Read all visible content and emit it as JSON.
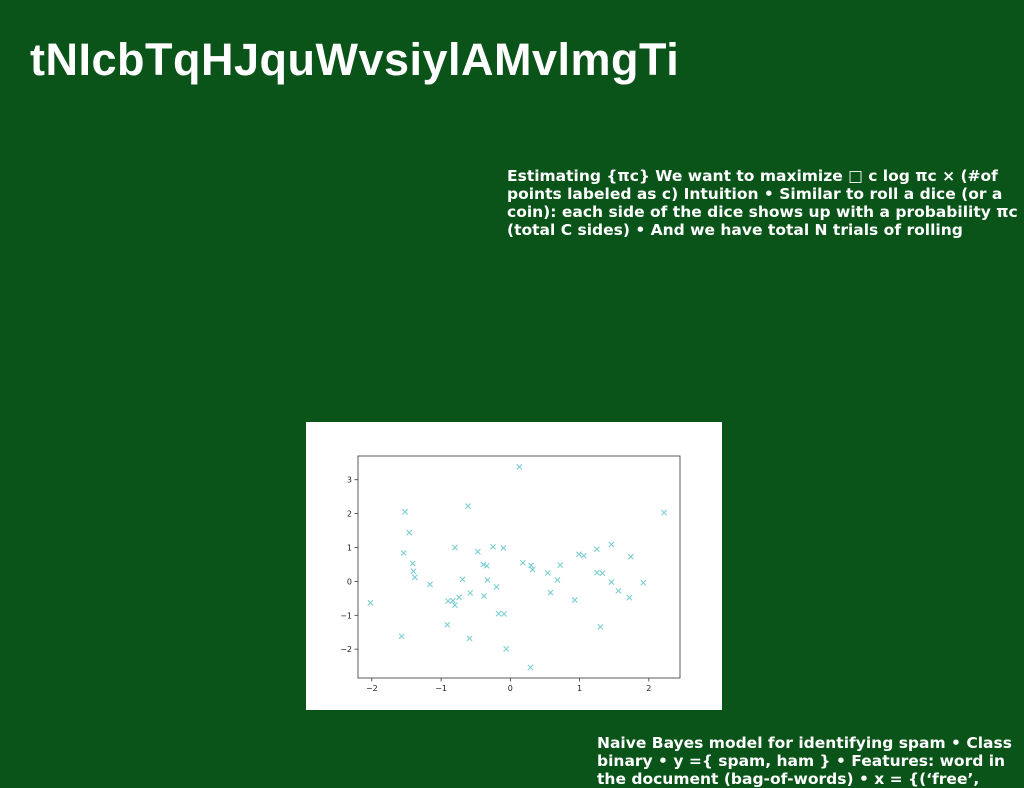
{
  "slide": {
    "title": "tNIcbTqHJquWvsiylAMvlmgTi",
    "text_top": "Estimating {πc} We want to maximize □ c log πc × (#of points labeled as c) Intuition • Similar to roll a dice (or a coin): each side of the dice shows up with a probability πc (total C sides) • And we have total N trials of rolling",
    "text_bottom": "Naive Bayes model for identifying spam • Class binary • y ={ spam, ham } • Features: word in the document (bag-of-words) • x = {(‘free’,",
    "background_color": "#0a5419"
  },
  "chart_data": {
    "type": "scatter",
    "marker": "x",
    "marker_color": "#7ecfd3",
    "grid": false,
    "title": "",
    "xlabel": "",
    "ylabel": "",
    "xlim": [
      -2.2,
      2.45
    ],
    "ylim": [
      -2.85,
      3.7
    ],
    "xticks": [
      -2,
      -1,
      0,
      1,
      2
    ],
    "yticks": [
      -2,
      -1,
      0,
      1,
      2,
      3
    ],
    "xtick_labels": [
      "−2",
      "−1",
      "0",
      "1",
      "2"
    ],
    "ytick_labels": [
      "−2",
      "−1",
      "0",
      "1",
      "2",
      "3"
    ],
    "points": [
      [
        -2.02,
        -0.63
      ],
      [
        -1.57,
        -1.62
      ],
      [
        -1.52,
        2.05
      ],
      [
        -1.54,
        0.84
      ],
      [
        -1.46,
        1.44
      ],
      [
        -1.41,
        0.53
      ],
      [
        -1.4,
        0.3
      ],
      [
        -1.38,
        0.12
      ],
      [
        -1.16,
        -0.09
      ],
      [
        -0.61,
        2.22
      ],
      [
        -0.91,
        -1.28
      ],
      [
        -0.9,
        -0.58
      ],
      [
        -0.83,
        -0.57
      ],
      [
        -0.8,
        -0.7
      ],
      [
        -0.8,
        1.0
      ],
      [
        -0.74,
        -0.47
      ],
      [
        -0.69,
        0.06
      ],
      [
        -0.58,
        -0.34
      ],
      [
        -0.59,
        -1.68
      ],
      [
        -0.47,
        0.88
      ],
      [
        -0.39,
        0.5
      ],
      [
        -0.34,
        0.46
      ],
      [
        -0.33,
        0.04
      ],
      [
        -0.38,
        -0.43
      ],
      [
        -0.25,
        1.02
      ],
      [
        -0.2,
        -0.16
      ],
      [
        -0.17,
        -0.95
      ],
      [
        -0.09,
        -0.96
      ],
      [
        -0.1,
        0.99
      ],
      [
        -0.06,
        -1.99
      ],
      [
        0.13,
        3.38
      ],
      [
        0.18,
        0.55
      ],
      [
        0.3,
        0.47
      ],
      [
        0.32,
        0.35
      ],
      [
        0.29,
        -2.54
      ],
      [
        0.54,
        0.25
      ],
      [
        0.58,
        -0.33
      ],
      [
        0.68,
        0.04
      ],
      [
        0.72,
        0.48
      ],
      [
        0.93,
        -0.55
      ],
      [
        0.99,
        0.8
      ],
      [
        1.06,
        0.76
      ],
      [
        1.25,
        0.26
      ],
      [
        1.25,
        0.95
      ],
      [
        1.3,
        -1.34
      ],
      [
        1.33,
        0.24
      ],
      [
        1.46,
        1.09
      ],
      [
        1.46,
        -0.02
      ],
      [
        1.56,
        -0.28
      ],
      [
        1.72,
        -0.48
      ],
      [
        1.74,
        0.73
      ],
      [
        1.92,
        -0.04
      ],
      [
        2.22,
        2.03
      ]
    ]
  }
}
